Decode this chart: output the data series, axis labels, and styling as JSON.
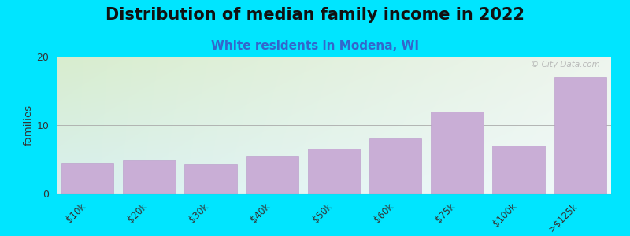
{
  "title": "Distribution of median family income in 2022",
  "subtitle": "White residents in Modena, WI",
  "categories": [
    "$10k",
    "$20k",
    "$30k",
    "$40k",
    "$50k",
    "$60k",
    "$75k",
    "$100k",
    ">$125k"
  ],
  "values": [
    4.5,
    4.8,
    4.2,
    5.5,
    6.5,
    8.0,
    12.0,
    7.0,
    17.0
  ],
  "bar_color": "#c9aed6",
  "bar_edge_color": "#b898c8",
  "background_color": "#00e5ff",
  "plot_bg_color_topleft": "#d8edce",
  "plot_bg_color_topright": "#eef5ee",
  "plot_bg_color_bottom": "#d8f0f0",
  "ylabel": "families",
  "ylim": [
    0,
    20
  ],
  "yticks": [
    0,
    10,
    20
  ],
  "grid_color": "#aaaaaa",
  "title_fontsize": 15,
  "subtitle_fontsize": 11,
  "subtitle_color": "#3366cc",
  "watermark_text": "© City-Data.com",
  "watermark_color": "#b0b0b0"
}
